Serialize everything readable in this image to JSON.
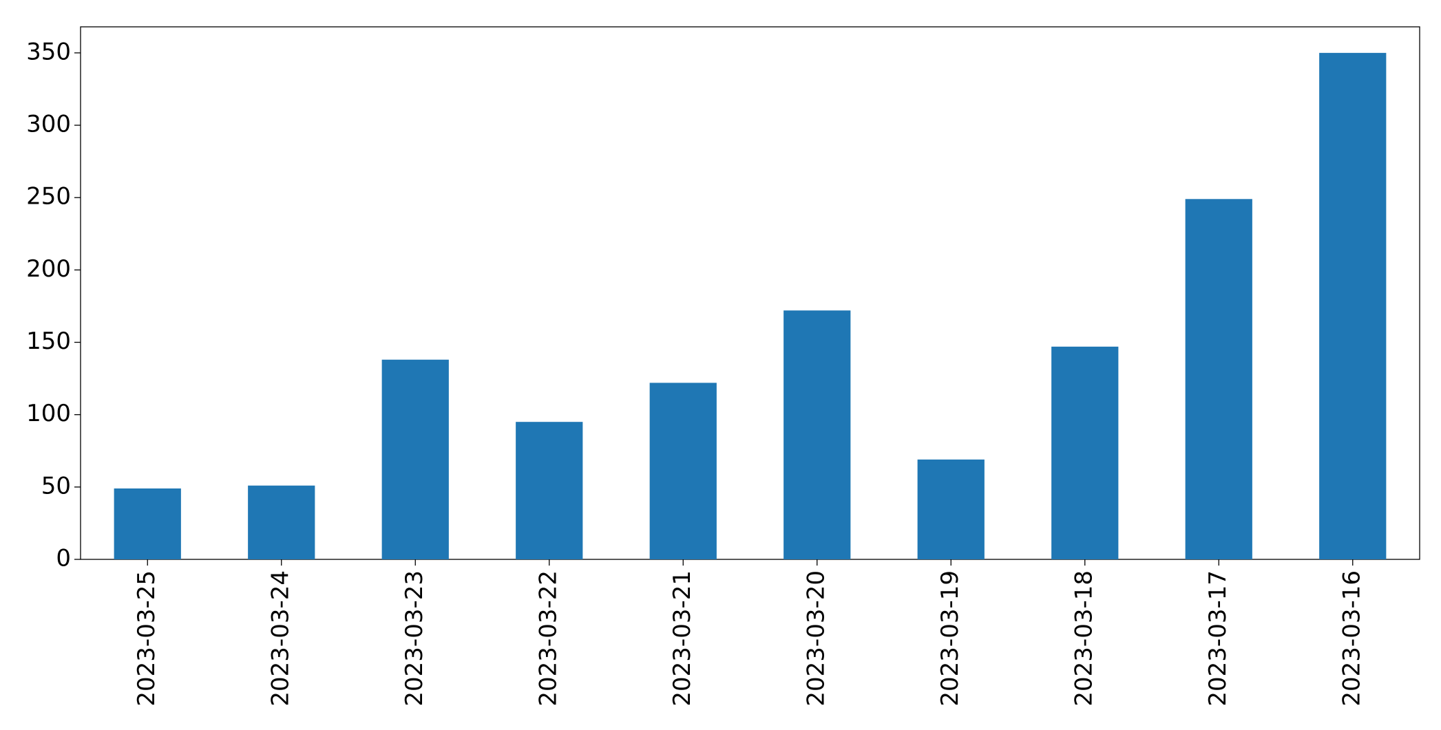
{
  "chart_data": {
    "type": "bar",
    "categories": [
      "2023-03-25",
      "2023-03-24",
      "2023-03-23",
      "2023-03-22",
      "2023-03-21",
      "2023-03-20",
      "2023-03-19",
      "2023-03-18",
      "2023-03-17",
      "2023-03-16"
    ],
    "values": [
      49,
      51,
      138,
      95,
      122,
      172,
      69,
      147,
      249,
      350
    ],
    "color": "#1f77b4",
    "ylim": [
      0,
      368
    ],
    "yticks": [
      0,
      50,
      100,
      150,
      200,
      250,
      300,
      350
    ],
    "grid": false
  }
}
